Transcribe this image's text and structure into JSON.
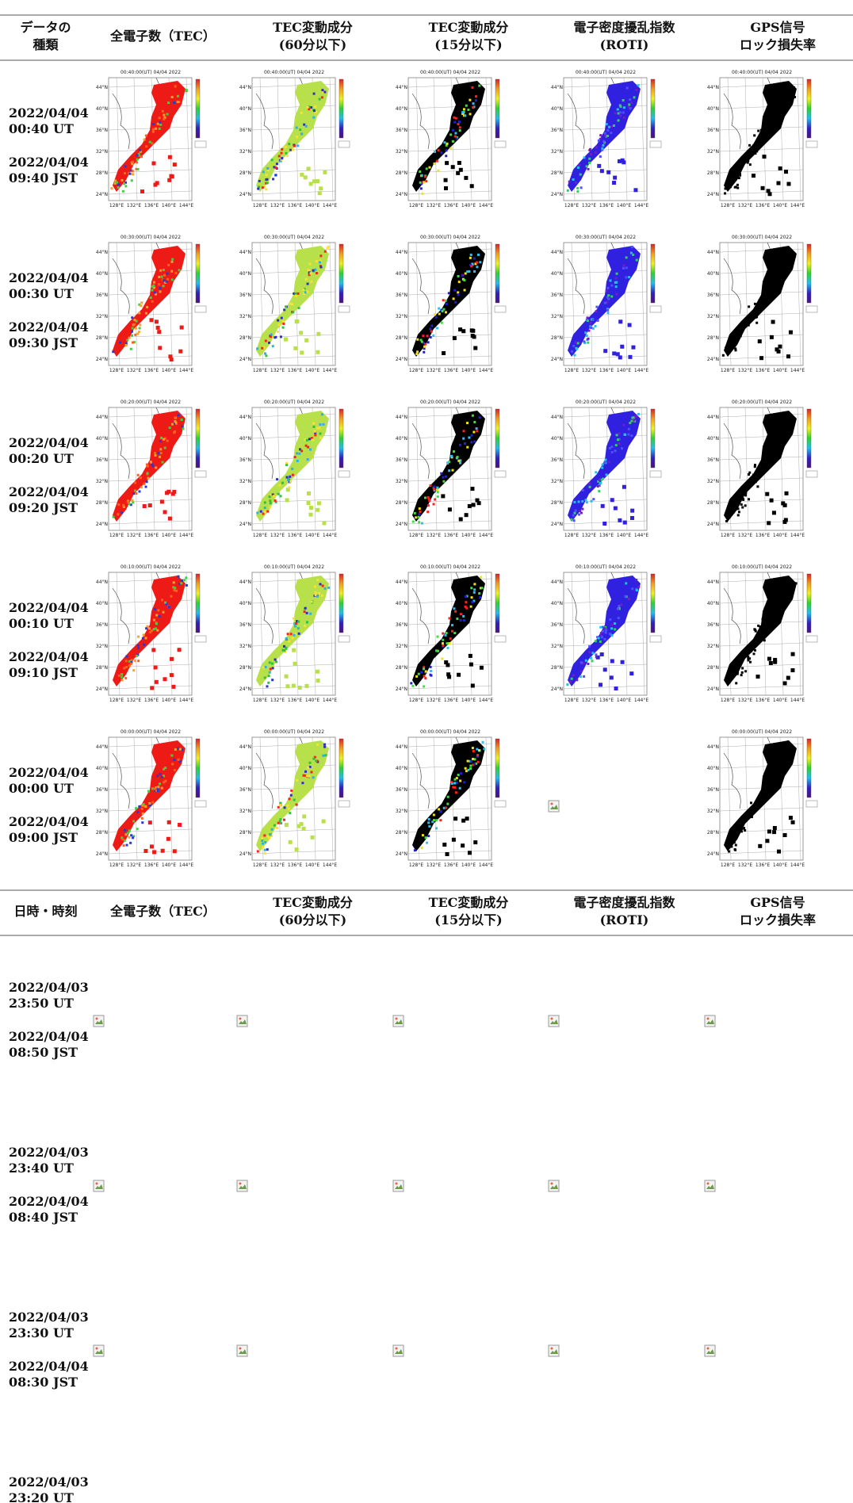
{
  "header": {
    "columns": [
      [
        "データの",
        "種類"
      ],
      [
        "全電子数（TEC）"
      ],
      [
        "TEC変動成分",
        "(60分以下)"
      ],
      [
        "TEC変動成分",
        "(15分以下)"
      ],
      [
        "電子密度擾乱指数",
        "(ROTI)"
      ],
      [
        "GPS信号",
        "ロック損失率"
      ]
    ]
  },
  "header2": {
    "columns": [
      [
        "日時・時刻"
      ],
      [
        "全電子数（TEC）"
      ],
      [
        "TEC変動成分",
        "(60分以下)"
      ],
      [
        "TEC変動成分",
        "(15分以下)"
      ],
      [
        "電子密度擾乱指数",
        "(ROTI)"
      ],
      [
        "GPS信号",
        "ロック損失率"
      ]
    ]
  },
  "map_axes": {
    "lat": [
      "44°N",
      "40°N",
      "36°N",
      "32°N",
      "28°N",
      "24°N"
    ],
    "lon": [
      "128°E",
      "132°E",
      "136°E",
      "140°E",
      "144°E"
    ]
  },
  "rows": [
    {
      "ut": [
        "2022/04/04",
        "00:40 UT"
      ],
      "jst": [
        "2022/04/04",
        "09:40 JST"
      ],
      "map_title": "00:40:00(UT) 04/04 2022",
      "images_loaded": [
        true,
        true,
        true,
        true,
        true
      ]
    },
    {
      "ut": [
        "2022/04/04",
        "00:30 UT"
      ],
      "jst": [
        "2022/04/04",
        "09:30 JST"
      ],
      "map_title": "00:30:00(UT) 04/04 2022",
      "images_loaded": [
        true,
        true,
        true,
        true,
        true
      ]
    },
    {
      "ut": [
        "2022/04/04",
        "00:20 UT"
      ],
      "jst": [
        "2022/04/04",
        "09:20 JST"
      ],
      "map_title": "00:20:00(UT) 04/04 2022",
      "images_loaded": [
        true,
        true,
        true,
        true,
        true
      ]
    },
    {
      "ut": [
        "2022/04/04",
        "00:10 UT"
      ],
      "jst": [
        "2022/04/04",
        "09:10 JST"
      ],
      "map_title": "00:10:00(UT) 04/04 2022",
      "images_loaded": [
        true,
        true,
        true,
        true,
        true
      ]
    },
    {
      "ut": [
        "2022/04/04",
        "00:00 UT"
      ],
      "jst": [
        "2022/04/04",
        "09:00 JST"
      ],
      "map_title": "00:00:00(UT) 04/04 2022",
      "images_loaded": [
        true,
        true,
        true,
        false,
        true
      ]
    }
  ],
  "rows2": [
    {
      "ut": [
        "2022/04/03",
        "23:50 UT"
      ],
      "jst": [
        "2022/04/04",
        "08:50 JST"
      ]
    },
    {
      "ut": [
        "2022/04/03",
        "23:40 UT"
      ],
      "jst": [
        "2022/04/04",
        "08:40 JST"
      ]
    },
    {
      "ut": [
        "2022/04/03",
        "23:30 UT"
      ],
      "jst": [
        "2022/04/04",
        "08:30 JST"
      ]
    },
    {
      "ut": [
        "2022/04/03",
        "23:20 UT"
      ]
    }
  ]
}
